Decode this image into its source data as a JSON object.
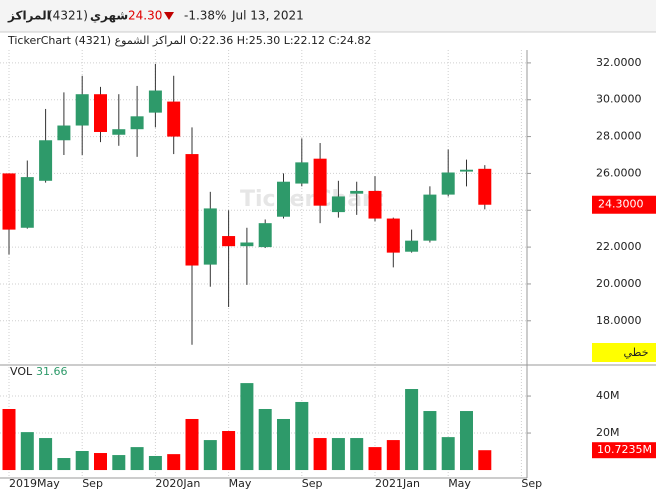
{
  "header": {
    "name": "المراكز",
    "code": "(4321)",
    "period": "شهري",
    "price": "24.30",
    "change": "-1.38%",
    "date": "Jul 13, 2021"
  },
  "chart_data": [
    {
      "type": "candlestick",
      "subtitle": "TickerChart المراكز الشموع (4321) O:22.36 H:25.30 L:22.12 C:24.82",
      "watermark": "TickerChart",
      "scale_label": "خطي",
      "categories": [
        "2019May",
        null,
        null,
        null,
        "Sep",
        null,
        null,
        null,
        "2020Jan",
        null,
        null,
        null,
        "May",
        null,
        null,
        null,
        "Sep",
        null,
        null,
        null,
        "2021Jan",
        null,
        null,
        null,
        "May",
        null,
        null,
        null,
        "Sep"
      ],
      "open": [
        26.0,
        23.05,
        25.6,
        27.8,
        28.6,
        30.3,
        28.1,
        28.4,
        29.3,
        29.9,
        27.05,
        21.05,
        22.6,
        22.05,
        22.0,
        23.65,
        25.45,
        26.8,
        23.9,
        24.9,
        25.05,
        23.55,
        21.75,
        22.35,
        24.85,
        26.1,
        26.25,
        null,
        null
      ],
      "high": [
        26.0,
        26.7,
        29.5,
        30.4,
        31.3,
        30.7,
        30.3,
        30.75,
        31.95,
        31.3,
        28.5,
        25.0,
        24.0,
        23.05,
        23.5,
        26.0,
        27.9,
        27.65,
        25.6,
        25.55,
        25.85,
        23.6,
        22.95,
        25.3,
        27.3,
        26.75,
        26.45,
        null,
        null
      ],
      "low": [
        21.6,
        23.0,
        25.5,
        27.0,
        27.0,
        27.7,
        27.5,
        26.9,
        28.5,
        27.05,
        16.7,
        19.85,
        18.75,
        19.95,
        21.95,
        23.55,
        25.3,
        23.3,
        23.6,
        23.75,
        23.4,
        20.9,
        21.7,
        22.25,
        24.75,
        25.3,
        24.05,
        null,
        null
      ],
      "close": [
        22.95,
        25.8,
        27.8,
        28.6,
        30.3,
        28.25,
        28.4,
        29.1,
        30.5,
        28.0,
        21.0,
        24.1,
        22.05,
        22.25,
        23.3,
        25.55,
        26.6,
        24.25,
        24.75,
        25.05,
        23.55,
        21.7,
        22.35,
        24.85,
        26.05,
        26.2,
        24.3,
        null,
        null
      ],
      "last_label": "24.3000",
      "up_color": "#2e9a6a",
      "down_color": "#ff0000",
      "ylim": [
        15.6,
        32.7
      ],
      "yticks": [
        {
          "value": 18,
          "label": "18.0000"
        },
        {
          "value": 20,
          "label": "20.0000"
        },
        {
          "value": 22,
          "label": "22.0000"
        },
        {
          "value": 24,
          "label": "24.0000"
        },
        {
          "value": 26,
          "label": "26.0000"
        },
        {
          "value": 28,
          "label": "28.0000"
        },
        {
          "value": 30,
          "label": "30.0000"
        },
        {
          "value": 32,
          "label": "32.0000"
        }
      ],
      "grid": true
    },
    {
      "type": "bar",
      "title": "VOL",
      "subtitle": "31.66",
      "values": [
        33.0,
        20.5,
        17.3,
        6.5,
        10.3,
        9.2,
        8.1,
        12.4,
        7.6,
        8.6,
        27.6,
        16.2,
        21.1,
        47.0,
        33.0,
        27.6,
        36.8,
        17.3,
        17.3,
        17.3,
        12.4,
        16.2,
        43.8,
        31.9,
        17.8,
        31.9,
        10.7235
      ],
      "last_label": "10.7235M",
      "ylim": [
        -4.3,
        55.7
      ],
      "yticks": [
        {
          "value": 20,
          "label": "20M"
        },
        {
          "value": 40,
          "label": "40M"
        }
      ],
      "grid": true
    }
  ]
}
